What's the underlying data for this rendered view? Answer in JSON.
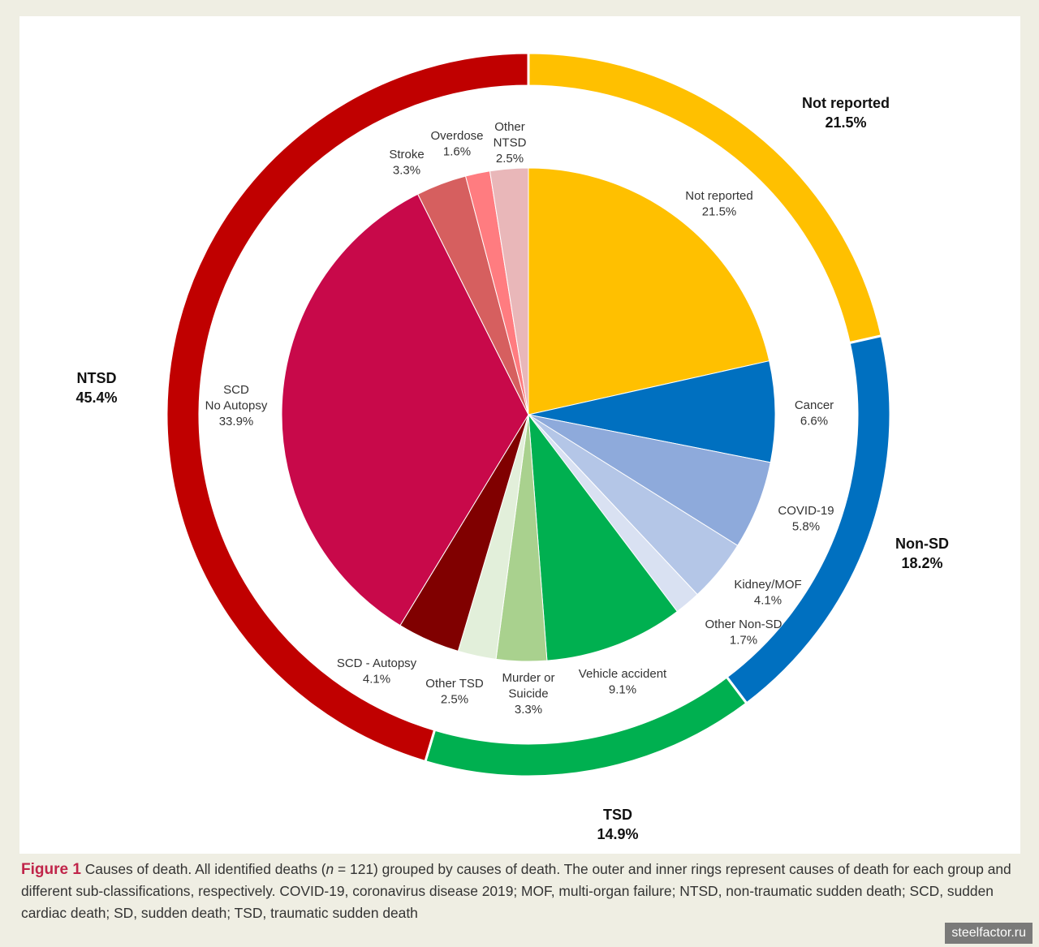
{
  "chart_data": {
    "type": "pie",
    "outer_ring": [
      {
        "name": "Not reported",
        "value": 21.5,
        "label": "21.5%",
        "color": "#ffc000"
      },
      {
        "name": "Non-SD",
        "value": 18.2,
        "label": "18.2%",
        "color": "#0070c0"
      },
      {
        "name": "TSD",
        "value": 14.9,
        "label": "14.9%",
        "color": "#00b050"
      },
      {
        "name": "NTSD",
        "value": 45.4,
        "label": "45.4%",
        "color": "#c00000"
      }
    ],
    "inner_pie": [
      {
        "name": "Not reported",
        "value": 21.5,
        "label": "21.5%",
        "color": "#ffc000"
      },
      {
        "name": "Cancer",
        "value": 6.6,
        "label": "6.6%",
        "color": "#0070c0"
      },
      {
        "name": "COVID-19",
        "value": 5.8,
        "label": "5.8%",
        "color": "#8eaadb"
      },
      {
        "name": "Kidney/MOF",
        "value": 4.1,
        "label": "4.1%",
        "color": "#b4c6e7"
      },
      {
        "name": "Other Non-SD",
        "value": 1.7,
        "label": "1.7%",
        "color": "#d9e1f2"
      },
      {
        "name": "Vehicle accident",
        "value": 9.1,
        "label": "9.1%",
        "color": "#00b050"
      },
      {
        "name": "Murder or Suicide",
        "value": 3.3,
        "label": "3.3%",
        "color": "#a9d18e"
      },
      {
        "name": "Other TSD",
        "value": 2.5,
        "label": "2.5%",
        "color": "#e2efda"
      },
      {
        "name": "SCD - Autopsy",
        "value": 4.1,
        "label": "4.1%",
        "color": "#800000"
      },
      {
        "name": "SCD No Autopsy",
        "value": 33.9,
        "label": "33.9%",
        "color": "#c8094a"
      },
      {
        "name": "Stroke",
        "value": 3.3,
        "label": "3.3%",
        "color": "#d65f5f"
      },
      {
        "name": "Overdose",
        "value": 1.6,
        "label": "1.6%",
        "color": "#ff7c80"
      },
      {
        "name": "Other NTSD",
        "value": 2.5,
        "label": "2.5%",
        "color": "#e9b7b9"
      }
    ]
  },
  "caption": {
    "figure_label": "Figure 1",
    "text_before_n": " Causes of death. All identified deaths (",
    "n_symbol": "n",
    "text_after_n": " = 121) grouped by causes of death. The outer and inner rings represent causes of death for each group and different sub-classifications, respectively. COVID-19, coronavirus disease 2019; MOF, multi-organ failure; NTSD, non-traumatic sudden death; SCD, sudden cardiac death; SD, sudden death; TSD, traumatic sudden death"
  },
  "watermark": "steelfactor.ru"
}
